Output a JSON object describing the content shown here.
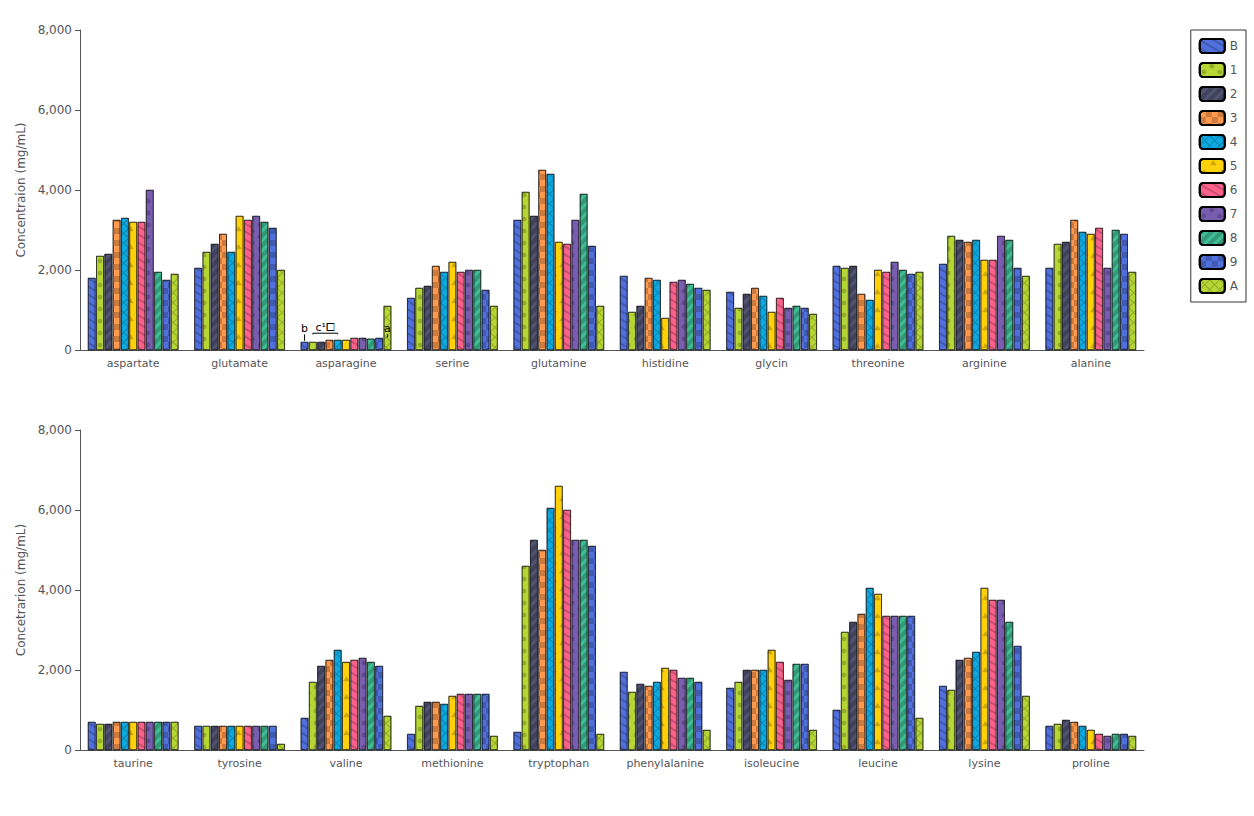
{
  "chart_data": [
    {
      "type": "bar",
      "ylabel": "Concentraion (mg/mL)",
      "categories": [
        "aspartate",
        "glutamate",
        "asparagine",
        "serine",
        "glutamine",
        "histidine",
        "glycin",
        "threonine",
        "arginine",
        "alanine"
      ],
      "series": [
        {
          "name": "B",
          "values": [
            1800,
            2050,
            200,
            1300,
            3250,
            1850,
            1450,
            2100,
            2150,
            2050
          ]
        },
        {
          "name": "1",
          "values": [
            2350,
            2450,
            200,
            1550,
            3950,
            950,
            1050,
            2050,
            2850,
            2650
          ]
        },
        {
          "name": "2",
          "values": [
            2400,
            2650,
            200,
            1600,
            3350,
            1100,
            1400,
            2100,
            2750,
            2700
          ]
        },
        {
          "name": "3",
          "values": [
            3250,
            2900,
            250,
            2100,
            4500,
            1800,
            1550,
            1400,
            2700,
            3250
          ]
        },
        {
          "name": "4",
          "values": [
            3300,
            2450,
            250,
            1950,
            4400,
            1750,
            1350,
            1250,
            2750,
            2950
          ]
        },
        {
          "name": "5",
          "values": [
            3200,
            3350,
            250,
            2200,
            2700,
            800,
            950,
            2000,
            2250,
            2900
          ]
        },
        {
          "name": "6",
          "values": [
            3200,
            3250,
            300,
            1950,
            2650,
            1700,
            1300,
            1950,
            2250,
            3050
          ]
        },
        {
          "name": "7",
          "values": [
            4000,
            3350,
            300,
            2000,
            3250,
            1750,
            1050,
            2200,
            2850,
            2050
          ]
        },
        {
          "name": "8",
          "values": [
            1950,
            3200,
            280,
            2000,
            3900,
            1650,
            1100,
            2000,
            2750,
            3000
          ]
        },
        {
          "name": "9",
          "values": [
            1750,
            3050,
            300,
            1500,
            2600,
            1550,
            1050,
            1900,
            2050,
            2900
          ]
        },
        {
          "name": "A",
          "values": [
            1900,
            2000,
            1100,
            1100,
            1100,
            1500,
            900,
            1950,
            1850,
            1950
          ]
        }
      ],
      "ylim": [
        0,
        8000
      ],
      "yticks": [
        0,
        {
          "value": 2000,
          "label": "2,000"
        },
        {
          "value": 4000,
          "label": "4,000"
        },
        {
          "value": 6000,
          "label": "6,000"
        },
        {
          "value": 8000,
          "label": "8,000"
        }
      ],
      "grid": false,
      "legend": "upper right",
      "annotations": [
        {
          "text": "a",
          "category": "asparagine",
          "series": "A",
          "y": 395,
          "line": [
            310,
            390
          ]
        },
        {
          "text": "b",
          "category": "asparagine",
          "series": "B",
          "y": 395,
          "line": [
            230,
            390
          ]
        },
        {
          "text": "c¹⧠",
          "category": "asparagine",
          "series": [
            "1",
            "4"
          ],
          "y": 428,
          "bracket": [
            390,
            420
          ]
        }
      ]
    },
    {
      "type": "bar",
      "ylabel": "Concetrarion (mg/mL)",
      "categories": [
        "taurine",
        "tyrosine",
        "valine",
        "methionine",
        "tryptophan",
        "phenylalanine",
        "isoleucine",
        "leucine",
        "lysine",
        "proline"
      ],
      "series": [
        {
          "name": "B",
          "values": [
            700,
            600,
            800,
            400,
            450,
            1950,
            1550,
            1000,
            1600,
            600
          ]
        },
        {
          "name": "1",
          "values": [
            650,
            600,
            1700,
            1100,
            4600,
            1450,
            1700,
            2950,
            1500,
            650
          ]
        },
        {
          "name": "2",
          "values": [
            650,
            600,
            2100,
            1200,
            5250,
            1650,
            2000,
            3200,
            2250,
            750
          ]
        },
        {
          "name": "3",
          "values": [
            700,
            600,
            2250,
            1200,
            5000,
            1600,
            2000,
            3400,
            2300,
            700
          ]
        },
        {
          "name": "4",
          "values": [
            700,
            600,
            2500,
            1150,
            6050,
            1700,
            2000,
            4050,
            2450,
            600
          ]
        },
        {
          "name": "5",
          "values": [
            700,
            600,
            2200,
            1350,
            6600,
            2050,
            2500,
            3900,
            4050,
            500
          ]
        },
        {
          "name": "6",
          "values": [
            700,
            600,
            2250,
            1400,
            6000,
            2000,
            2200,
            3350,
            3750,
            400
          ]
        },
        {
          "name": "7",
          "values": [
            700,
            600,
            2300,
            1400,
            5250,
            1800,
            1750,
            3350,
            3750,
            350
          ]
        },
        {
          "name": "8",
          "values": [
            700,
            600,
            2200,
            1400,
            5250,
            1800,
            2150,
            3350,
            3200,
            400
          ]
        },
        {
          "name": "9",
          "values": [
            700,
            600,
            2100,
            1400,
            5100,
            1700,
            2150,
            3350,
            2600,
            400
          ]
        },
        {
          "name": "A",
          "values": [
            700,
            150,
            850,
            350,
            400,
            500,
            500,
            800,
            1350,
            350
          ]
        }
      ],
      "ylim": [
        0,
        8000
      ],
      "yticks": [
        0,
        {
          "value": 2000,
          "label": "2,000"
        },
        {
          "value": 4000,
          "label": "4,000"
        },
        {
          "value": 6000,
          "label": "6,000"
        },
        {
          "value": 8000,
          "label": "8,000"
        }
      ],
      "grid": false
    }
  ]
}
